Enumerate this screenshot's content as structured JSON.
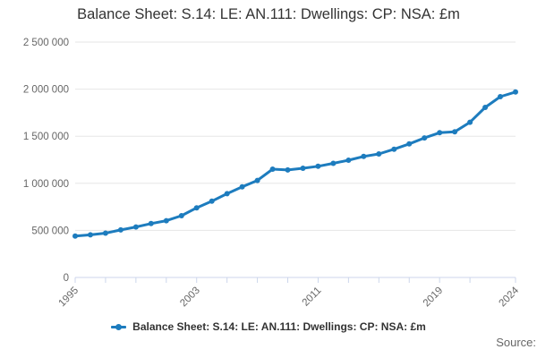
{
  "title": "Balance Sheet: S.14: LE: AN.111: Dwellings: CP: NSA: £m",
  "source_label": "Source:",
  "legend": {
    "label": "Balance Sheet: S.14: LE: AN.111: Dwellings: CP: NSA: £m",
    "marker": "line-with-dot"
  },
  "colors": {
    "line": "#1d7cbe",
    "grid": "#e6e6e6",
    "axis": "#ccd6eb",
    "tick_label": "#666666",
    "title_text": "#333333"
  },
  "chart_data": {
    "type": "line",
    "title": "Balance Sheet: S.14: LE: AN.111: Dwellings: CP: NSA: £m",
    "xlabel": "",
    "ylabel": "",
    "x": [
      1995,
      1996,
      1997,
      1998,
      1999,
      2000,
      2001,
      2002,
      2003,
      2004,
      2005,
      2006,
      2007,
      2008,
      2009,
      2010,
      2011,
      2012,
      2013,
      2014,
      2015,
      2016,
      2017,
      2018,
      2019,
      2020,
      2021,
      2022,
      2023,
      2024
    ],
    "series": [
      {
        "name": "Balance Sheet: S.14: LE: AN.111: Dwellings: CP: NSA: £m",
        "values": [
          440000,
          452000,
          471000,
          505000,
          536000,
          572000,
          603000,
          656000,
          740000,
          810000,
          890000,
          962000,
          1030000,
          1150000,
          1142000,
          1160000,
          1181000,
          1212000,
          1245000,
          1285000,
          1312000,
          1362000,
          1418000,
          1482000,
          1537000,
          1548000,
          1648000,
          1806000,
          1920000,
          1970000
        ]
      }
    ],
    "xlim": [
      1995,
      2024
    ],
    "ylim": [
      0,
      2500000
    ],
    "yticks": [
      0,
      500000,
      1000000,
      1500000,
      2000000,
      2500000
    ],
    "ytick_labels": [
      "0",
      "500 000",
      "1 000 000",
      "1 500 000",
      "2 000 000",
      "2 500 000"
    ],
    "xticks": [
      1995,
      1997,
      1999,
      2001,
      2003,
      2005,
      2007,
      2009,
      2011,
      2013,
      2015,
      2017,
      2019,
      2021,
      2024
    ],
    "xtick_labeled": [
      1995,
      2003,
      2011,
      2019,
      2024
    ],
    "grid": true,
    "legend_position": "bottom",
    "marker": "circle"
  }
}
